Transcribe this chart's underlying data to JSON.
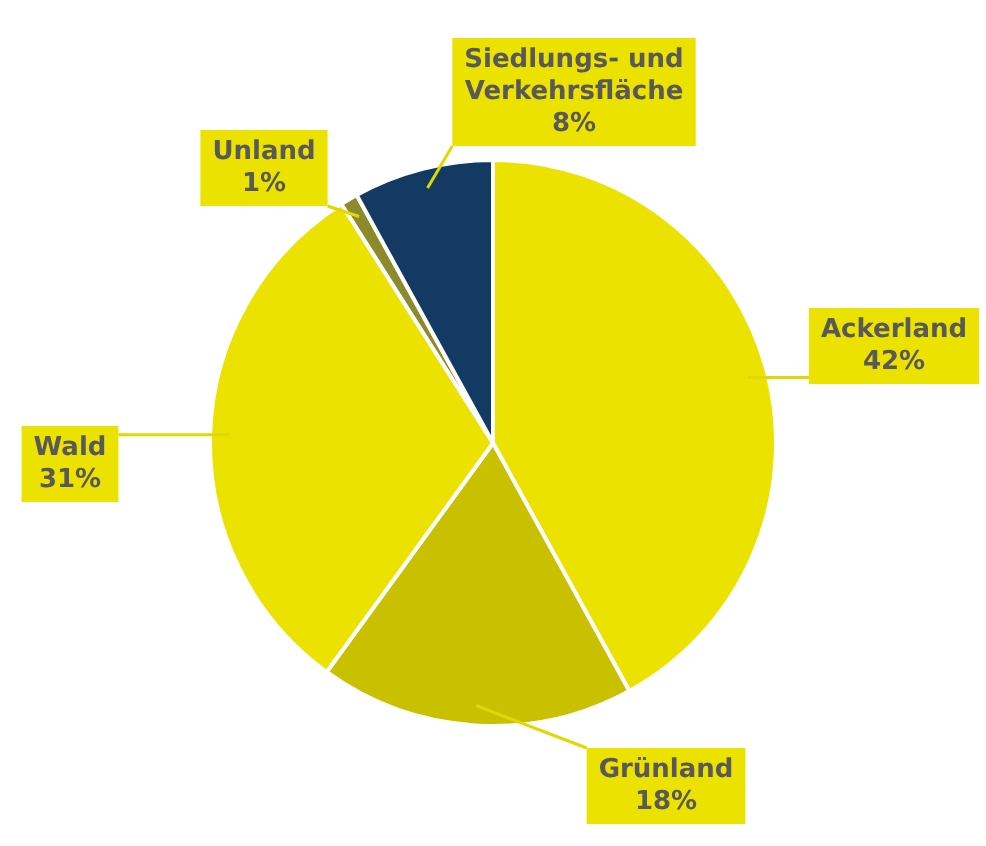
{
  "chart_data": {
    "type": "pie",
    "categories": [
      "Ackerland",
      "Grünland",
      "Wald",
      "Unland",
      "Siedlungs- und Verkehrsfläche"
    ],
    "values": [
      42,
      18,
      31,
      1,
      8
    ],
    "value_labels": [
      "42%",
      "18%",
      "31%",
      "1%",
      "8%"
    ],
    "colors": [
      "#ece200",
      "#c9c000",
      "#ece200",
      "#8c8a2a",
      "#133a63"
    ],
    "legend": false
  }
}
